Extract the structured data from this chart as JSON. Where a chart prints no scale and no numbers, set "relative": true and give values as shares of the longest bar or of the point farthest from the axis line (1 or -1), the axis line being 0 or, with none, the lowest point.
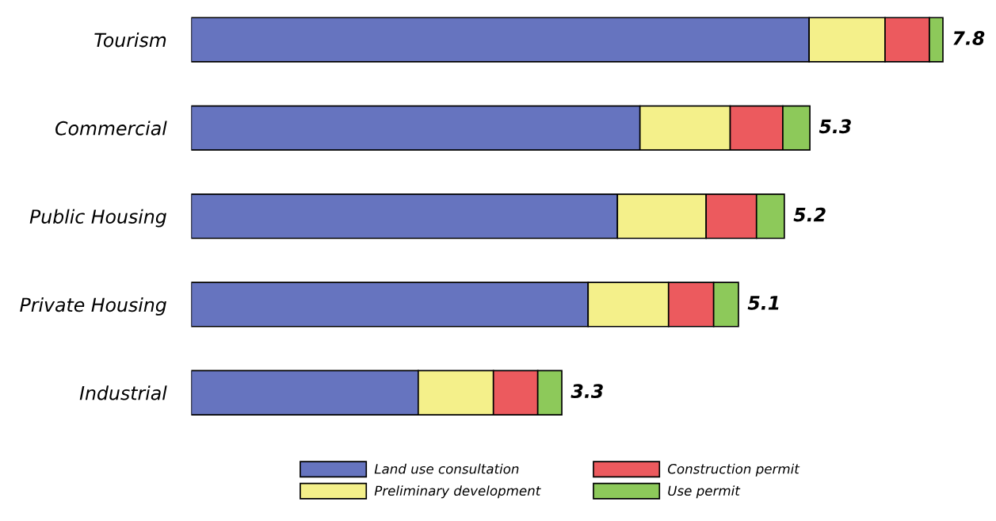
{
  "chart_data": {
    "type": "bar",
    "orientation": "horizontal",
    "stacked": true,
    "relative": true,
    "categories": [
      "Tourism",
      "Commercial",
      "Public Housing",
      "Private Housing",
      "Industrial"
    ],
    "series": [
      {
        "name": "Land use consultation",
        "color": "#6674bf",
        "values": [
          0.822,
          0.597,
          0.567,
          0.528,
          0.302
        ]
      },
      {
        "name": "Preliminary development",
        "color": "#f4f08a",
        "values": [
          0.101,
          0.12,
          0.118,
          0.107,
          0.1
        ]
      },
      {
        "name": "Construction permit",
        "color": "#ec5a5e",
        "values": [
          0.059,
          0.07,
          0.067,
          0.06,
          0.059
        ]
      },
      {
        "name": "Use permit",
        "color": "#8dc95a",
        "values": [
          0.018,
          0.036,
          0.037,
          0.033,
          0.032
        ]
      }
    ],
    "annotations": [
      {
        "text": "7.8",
        "x": 1.0,
        "y": "Tourism"
      },
      {
        "text": "5.3",
        "x": 0.823,
        "y": "Commercial"
      },
      {
        "text": "5.2",
        "x": 0.789,
        "y": "Public Housing"
      },
      {
        "text": "5.1",
        "x": 0.728,
        "y": "Private Housing"
      },
      {
        "text": "3.3",
        "x": 0.493,
        "y": "Industrial"
      }
    ],
    "legend": "bottom",
    "grid": false
  }
}
